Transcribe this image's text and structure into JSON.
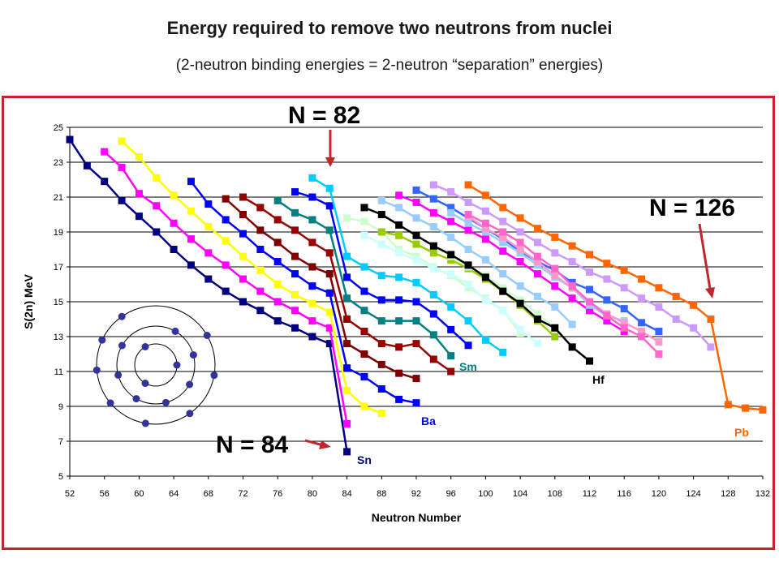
{
  "header": {
    "title": "Energy required to remove two neutrons from nuclei",
    "subtitle": "(2-neutron binding energies = 2-neutron “separation” energies)"
  },
  "annotations": {
    "n82": "N = 82",
    "n84": "N = 84",
    "n126": "N = 126",
    "arrow_color": "#c0272d"
  },
  "chart_data": {
    "type": "line",
    "title": "",
    "xlabel": "Neutron Number",
    "ylabel": "S(2n) MeV",
    "xlim": [
      52,
      132
    ],
    "ylim": [
      5,
      25
    ],
    "xticks": [
      52,
      56,
      60,
      64,
      68,
      72,
      76,
      80,
      84,
      88,
      92,
      96,
      100,
      104,
      108,
      112,
      116,
      120,
      124,
      128,
      132
    ],
    "yticks": [
      5,
      7,
      9,
      11,
      13,
      15,
      17,
      19,
      21,
      23,
      25
    ],
    "grid": "horizontal",
    "series": [
      {
        "name": "Sn",
        "color": "#000080",
        "x": [
          52,
          54,
          56,
          58,
          60,
          62,
          64,
          66,
          68,
          70,
          72,
          74,
          76,
          78,
          80,
          82,
          84
        ],
        "y": [
          24.3,
          22.8,
          21.9,
          20.8,
          19.9,
          19.0,
          18.0,
          17.1,
          16.3,
          15.6,
          15.0,
          14.5,
          13.9,
          13.5,
          13.0,
          12.6,
          6.4
        ]
      },
      {
        "name": "",
        "color": "#ff00ff",
        "x": [
          56,
          58,
          60,
          62,
          64,
          66,
          68,
          70,
          72,
          74,
          76,
          78,
          80,
          82,
          84
        ],
        "y": [
          23.6,
          22.7,
          21.2,
          20.5,
          19.5,
          18.6,
          17.8,
          17.1,
          16.3,
          15.6,
          15.0,
          14.5,
          13.9,
          13.5,
          8.0
        ]
      },
      {
        "name": "",
        "color": "#ffff00",
        "x": [
          58,
          60,
          62,
          64,
          66,
          68,
          70,
          72,
          74,
          76,
          78,
          80,
          82,
          84,
          86,
          88
        ],
        "y": [
          24.2,
          23.3,
          22.1,
          21.1,
          20.2,
          19.3,
          18.5,
          17.6,
          16.8,
          16.0,
          15.4,
          14.9,
          14.4,
          9.9,
          9.0,
          8.6
        ]
      },
      {
        "name": "Ba",
        "color": "#0000ff",
        "x": [
          66,
          68,
          70,
          72,
          74,
          76,
          78,
          80,
          82,
          84,
          86,
          88,
          90,
          92
        ],
        "y": [
          21.9,
          20.6,
          19.7,
          18.9,
          18.0,
          17.3,
          16.6,
          15.9,
          15.5,
          11.2,
          10.7,
          10.0,
          9.4,
          9.2
        ]
      },
      {
        "name": "",
        "color": "#800000",
        "x": [
          70,
          72,
          74,
          76,
          78,
          80,
          82,
          84,
          86,
          88,
          90,
          92
        ],
        "y": [
          20.9,
          20.0,
          19.1,
          18.4,
          17.6,
          17.0,
          16.6,
          12.6,
          12.0,
          11.4,
          10.9,
          10.6
        ]
      },
      {
        "name": "",
        "color": "#990000",
        "x": [
          72,
          74,
          76,
          78,
          80,
          82,
          84,
          86,
          88,
          90,
          92,
          94,
          96
        ],
        "y": [
          21.0,
          20.4,
          19.7,
          19.1,
          18.4,
          17.8,
          14.0,
          13.3,
          12.6,
          12.4,
          12.6,
          11.7,
          11.0
        ]
      },
      {
        "name": "Sm",
        "color": "#008080",
        "x": [
          76,
          78,
          80,
          82,
          84,
          86,
          88,
          90,
          92,
          94,
          96
        ],
        "y": [
          20.8,
          20.1,
          19.7,
          19.1,
          15.2,
          14.5,
          13.9,
          13.9,
          13.9,
          13.1,
          11.9
        ]
      },
      {
        "name": "",
        "color": "#0000ff",
        "x": [
          78,
          80,
          82,
          84,
          86,
          88,
          90,
          92,
          94,
          96,
          98
        ],
        "y": [
          21.3,
          21.0,
          20.5,
          16.4,
          15.6,
          15.1,
          15.1,
          15.0,
          14.3,
          13.4,
          12.5
        ]
      },
      {
        "name": "",
        "color": "#00ccff",
        "x": [
          80,
          82,
          84,
          86,
          88,
          90,
          92,
          94,
          96,
          98,
          100,
          102
        ],
        "y": [
          22.1,
          21.5,
          17.6,
          17.0,
          16.5,
          16.4,
          16.1,
          15.4,
          14.7,
          13.9,
          12.8,
          12.1
        ]
      },
      {
        "name": "",
        "color": "#ccffcc",
        "x": [
          84,
          86,
          88,
          90,
          92,
          94,
          96,
          98,
          100,
          102,
          104
        ],
        "y": [
          19.8,
          19.6,
          19.0,
          18.0,
          17.6,
          17.0,
          16.5,
          15.8,
          15.2,
          14.5,
          13.2
        ]
      },
      {
        "name": "",
        "color": "#ccffff",
        "x": [
          86,
          88,
          90,
          92,
          94,
          96,
          98,
          100,
          102,
          104,
          106
        ],
        "y": [
          18.8,
          18.3,
          17.8,
          17.4,
          16.9,
          16.6,
          16.0,
          15.1,
          14.5,
          13.4,
          12.6
        ]
      },
      {
        "name": "",
        "color": "#99cc00",
        "x": [
          88,
          90,
          92,
          94,
          96,
          98,
          100,
          102,
          104,
          106,
          108
        ],
        "y": [
          19.0,
          18.8,
          18.3,
          17.8,
          17.4,
          16.9,
          16.3,
          15.6,
          14.8,
          13.9,
          13.0
        ]
      },
      {
        "name": "",
        "color": "#99ccff",
        "x": [
          88,
          90,
          92,
          94,
          96,
          98,
          100,
          102,
          104,
          106,
          108,
          110
        ],
        "y": [
          20.8,
          20.4,
          19.8,
          19.3,
          18.7,
          18.0,
          17.4,
          16.6,
          15.9,
          15.3,
          14.7,
          13.7
        ]
      },
      {
        "name": "",
        "color": "#ccffcc",
        "x": [
          94,
          96,
          98,
          100,
          102,
          104,
          106,
          108,
          110
        ],
        "y": [
          18.2,
          17.6,
          17.0,
          16.5,
          15.8,
          15.1,
          14.3,
          13.5,
          12.4
        ]
      },
      {
        "name": "",
        "color": "#3366ff",
        "x": [
          92,
          94,
          96,
          98,
          100,
          102,
          104,
          106,
          108,
          110,
          112,
          114,
          116,
          118,
          120
        ],
        "y": [
          21.4,
          20.9,
          20.4,
          19.8,
          19.2,
          18.6,
          17.9,
          17.3,
          16.8,
          16.1,
          15.7,
          15.1,
          14.6,
          13.8,
          13.3
        ]
      },
      {
        "name": "",
        "color": "#ff00ff",
        "x": [
          90,
          92,
          94,
          96,
          98,
          100,
          102,
          104,
          106,
          108,
          110,
          112,
          114,
          116
        ],
        "y": [
          21.1,
          20.7,
          20.1,
          19.6,
          19.1,
          18.6,
          17.9,
          17.3,
          16.6,
          15.9,
          15.2,
          14.5,
          13.9,
          13.3
        ]
      },
      {
        "name": "Hf",
        "color": "#000000",
        "x": [
          86,
          88,
          90,
          92,
          94,
          96,
          98,
          100,
          102,
          104,
          106,
          108,
          110,
          112
        ],
        "y": [
          20.4,
          20.0,
          19.4,
          18.8,
          18.2,
          17.7,
          17.1,
          16.4,
          15.6,
          14.9,
          14.0,
          13.5,
          12.4,
          11.6
        ]
      },
      {
        "name": "",
        "color": "#cc99ff",
        "x": [
          94,
          96,
          98,
          100,
          102,
          104,
          106,
          108,
          110,
          112,
          114,
          116,
          118,
          120,
          122,
          124,
          126
        ],
        "y": [
          21.7,
          21.3,
          20.7,
          20.2,
          19.6,
          19.0,
          18.4,
          17.8,
          17.3,
          16.7,
          16.3,
          15.8,
          15.2,
          14.7,
          14.0,
          13.5,
          12.4
        ]
      },
      {
        "name": "",
        "color": "#99ccff",
        "x": [
          96,
          98,
          100,
          102,
          104,
          106,
          108,
          110,
          112,
          114,
          116
        ],
        "y": [
          20.1,
          19.5,
          19.0,
          18.4,
          17.8,
          17.1,
          16.4,
          15.8,
          14.8,
          14.2,
          13.9
        ]
      },
      {
        "name": "",
        "color": "#ff99cc",
        "x": [
          98,
          100,
          102,
          104,
          106,
          108,
          110,
          112,
          114,
          116,
          118,
          120
        ],
        "y": [
          19.9,
          19.2,
          18.7,
          18.0,
          17.3,
          16.5,
          15.8,
          15.0,
          14.3,
          13.8,
          13.3,
          12.7
        ]
      },
      {
        "name": "",
        "color": "#ff66cc",
        "x": [
          98,
          100,
          102,
          104,
          106,
          108,
          110,
          112,
          114,
          116,
          118,
          120
        ],
        "y": [
          20.0,
          19.5,
          19.0,
          18.4,
          17.6,
          16.9,
          15.9,
          15.0,
          14.2,
          13.5,
          13.0,
          12.0
        ]
      },
      {
        "name": "Pb",
        "color": "#ff6600",
        "x": [
          98,
          100,
          102,
          104,
          106,
          108,
          110,
          112,
          114,
          116,
          118,
          120,
          122,
          124,
          126,
          128,
          130,
          132
        ],
        "y": [
          21.7,
          21.1,
          20.4,
          19.8,
          19.2,
          18.7,
          18.2,
          17.7,
          17.2,
          16.8,
          16.3,
          15.8,
          15.3,
          14.8,
          14.0,
          9.1,
          8.9,
          8.8
        ]
      }
    ]
  }
}
